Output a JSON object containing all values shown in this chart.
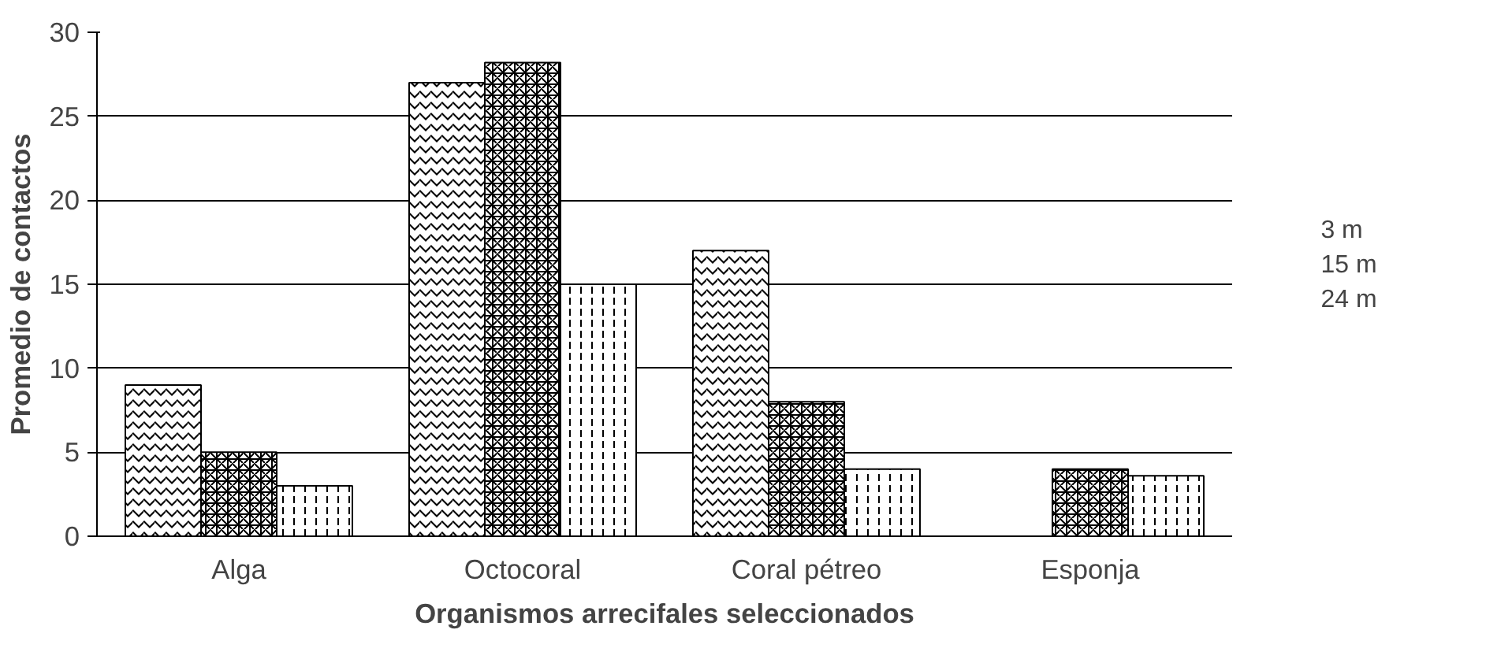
{
  "chart_data": {
    "type": "bar",
    "xlabel": "Organismos arrecifales seleccionados",
    "ylabel": "Promedio de contactos",
    "categories": [
      "Alga",
      "Octocoral",
      "Coral pétreo",
      "Esponja"
    ],
    "series": [
      {
        "name": "3 m",
        "color": "#ffffff",
        "values": [
          9,
          27,
          17,
          null
        ]
      },
      {
        "name": "15 m",
        "color": "#ffffff",
        "values": [
          5,
          28.2,
          8,
          4
        ]
      },
      {
        "name": "24 m",
        "color": "#ffffff",
        "values": [
          3,
          15,
          4,
          3.6
        ]
      }
    ],
    "ylim": [
      0,
      30
    ],
    "yticks": [
      0,
      5,
      10,
      15,
      20,
      25,
      30
    ],
    "grid": "y",
    "legend": "right"
  }
}
